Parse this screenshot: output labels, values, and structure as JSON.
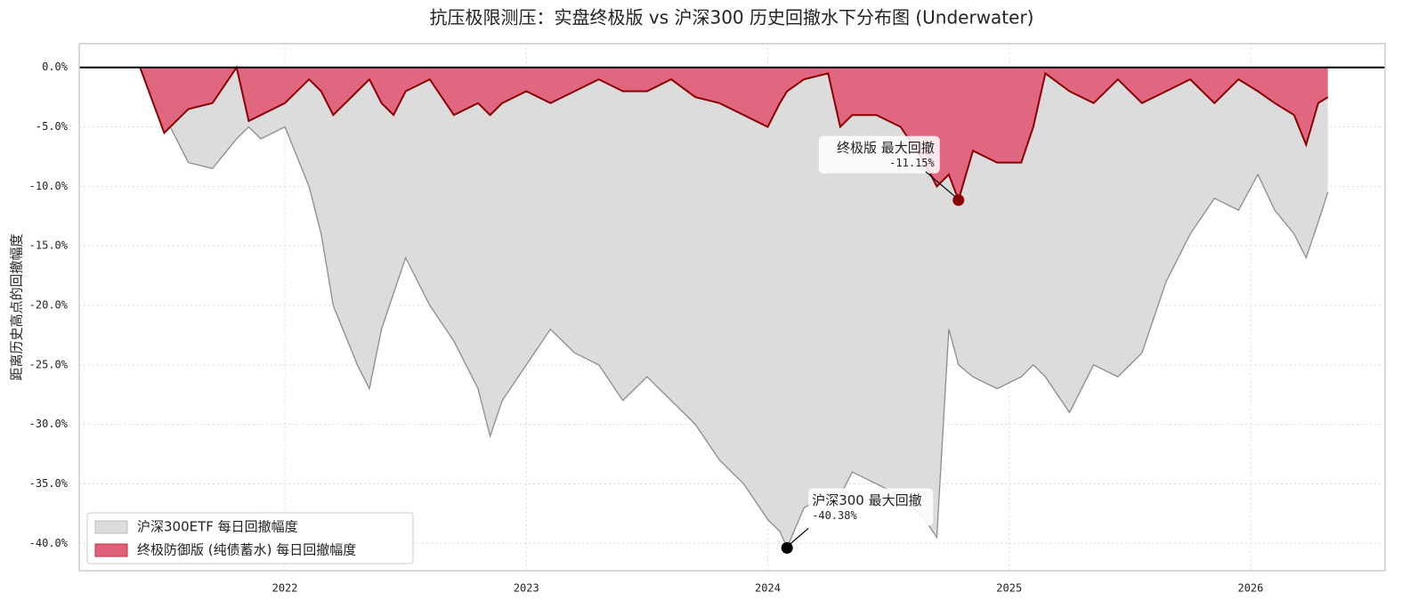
{
  "chart_data": {
    "type": "area",
    "title": "抗压极限测压：实盘终极版 vs 沪深300 历史回撤水下分布图 (Underwater)",
    "y_label": "距离历史高点的回撤幅度",
    "x": [
      2021.4,
      2021.5,
      2021.6,
      2021.7,
      2021.8,
      2021.85,
      2021.9,
      2022.0,
      2022.1,
      2022.15,
      2022.2,
      2022.3,
      2022.35,
      2022.4,
      2022.45,
      2022.5,
      2022.6,
      2022.7,
      2022.8,
      2022.85,
      2022.9,
      2023.0,
      2023.1,
      2023.2,
      2023.3,
      2023.4,
      2023.5,
      2023.6,
      2023.7,
      2023.8,
      2023.9,
      2024.0,
      2024.05,
      2024.08,
      2024.15,
      2024.25,
      2024.3,
      2024.35,
      2024.45,
      2024.55,
      2024.65,
      2024.7,
      2024.75,
      2024.79,
      2024.85,
      2024.95,
      2025.05,
      2025.1,
      2025.15,
      2025.25,
      2025.35,
      2025.45,
      2025.55,
      2025.65,
      2025.75,
      2025.85,
      2025.95,
      2026.03,
      2026.1,
      2026.18,
      2026.23,
      2026.28,
      2026.32
    ],
    "series": [
      {
        "name": "沪深300ETF 每日回撤幅度",
        "color": "#dcdcdc",
        "line_color": "#8c8c8c",
        "values": [
          0,
          -4,
          -8,
          -8.5,
          -6,
          -5,
          -6,
          -5,
          -10,
          -14,
          -20,
          -25,
          -27,
          -22,
          -19,
          -16,
          -20,
          -23,
          -27,
          -31,
          -28,
          -25,
          -22,
          -24,
          -25,
          -28,
          -26,
          -28,
          -30,
          -33,
          -35,
          -38,
          -39,
          -40.38,
          -37,
          -36,
          -36,
          -34,
          -35,
          -36,
          -38,
          -39.5,
          -22,
          -25,
          -26,
          -27,
          -26,
          -25,
          -26,
          -29,
          -25,
          -26,
          -24,
          -18,
          -14,
          -11,
          -12,
          -9,
          -12,
          -14,
          -16,
          -13,
          -10.5
        ]
      },
      {
        "name": "终极防御版 (纯债蓄水) 每日回撤幅度",
        "color": "#e0607a",
        "line_color": "#8b0000",
        "values": [
          0,
          -5.5,
          -3.5,
          -3,
          0,
          -4.5,
          -4,
          -3,
          -1,
          -2,
          -4,
          -2,
          -1,
          -3,
          -4,
          -2,
          -1,
          -4,
          -3,
          -4,
          -3,
          -2,
          -3,
          -2,
          -1,
          -2,
          -2,
          -1,
          -2.5,
          -3,
          -4,
          -5,
          -3,
          -2,
          -1,
          -0.5,
          -5,
          -4,
          -4,
          -5,
          -8,
          -10,
          -9,
          -11.15,
          -7,
          -8,
          -8,
          -5,
          -0.5,
          -2,
          -3,
          -1,
          -3,
          -2,
          -1,
          -3,
          -1,
          -2,
          -3,
          -4,
          -6.5,
          -3,
          -2.5
        ]
      }
    ],
    "annotations": [
      {
        "text": "终极版  最大回撤",
        "x": 2024.79,
        "value": -11.15,
        "value_label": "-11.15%",
        "color": "#8b0000"
      },
      {
        "text": "沪深300  最大回撤",
        "x": 2024.08,
        "value": -40.38,
        "value_label": "-40.38%",
        "color": "#000000"
      }
    ],
    "xlim": [
      2021.148,
      2026.557
    ],
    "xticks": [
      2022,
      2023,
      2024,
      2025,
      2026
    ],
    "ylim": [
      -42.3,
      2.0
    ],
    "yticks": [
      {
        "value": 0,
        "label": "0.0%"
      },
      {
        "value": -5,
        "label": "-5.0%"
      },
      {
        "value": -10,
        "label": "-10.0%"
      },
      {
        "value": -15,
        "label": "-15.0%"
      },
      {
        "value": -20,
        "label": "-20.0%"
      },
      {
        "value": -25,
        "label": "-25.0%"
      },
      {
        "value": -30,
        "label": "-30.0%"
      },
      {
        "value": -35,
        "label": "-35.0%"
      },
      {
        "value": -40,
        "label": "-40.0%"
      }
    ],
    "grid": true,
    "legend": "lower left"
  }
}
